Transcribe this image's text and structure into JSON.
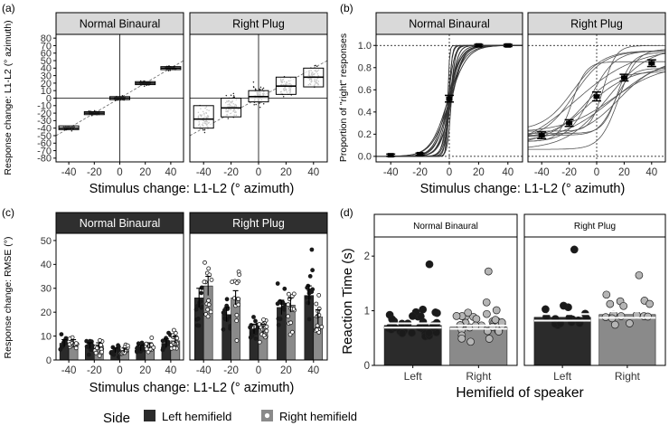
{
  "figure": {
    "legend": {
      "title": "Side",
      "entries": [
        "Left hemifield",
        "Right hemifield"
      ]
    }
  },
  "chart_data": [
    {
      "id": "a",
      "label": "(a)",
      "type": "scatter",
      "facets": [
        "Normal Binaural",
        "Right Plug"
      ],
      "xlabel": "Stimulus change: L1-L2 (° azimuth)",
      "ylabel": "Response change: L1-L2 (° azimuth)",
      "xticks": [
        "-40",
        "-20",
        "0",
        "20",
        "40"
      ],
      "yticks": [
        "-80",
        "-70",
        "-60",
        "-50",
        "-40",
        "-30",
        "-20",
        "-10",
        "0",
        "10",
        "20",
        "30",
        "40",
        "50",
        "60",
        "70",
        "80"
      ],
      "ylim": [
        -85,
        85
      ],
      "x": [
        -40,
        -20,
        0,
        20,
        40
      ],
      "boxes": [
        {
          "name": "Normal Binaural",
          "median": [
            -40,
            -20,
            0,
            20,
            40
          ],
          "q1": [
            -42,
            -22,
            -2,
            18,
            38
          ],
          "q3": [
            -37,
            -18,
            2,
            22,
            42
          ],
          "spread": [
            5,
            5,
            5,
            5,
            5
          ]
        },
        {
          "name": "Right Plug",
          "median": [
            -28,
            -13,
            2,
            16,
            28
          ],
          "q1": [
            -40,
            -25,
            -5,
            5,
            15
          ],
          "q3": [
            -10,
            0,
            10,
            28,
            40
          ],
          "spread": [
            28,
            28,
            26,
            24,
            24
          ]
        }
      ]
    },
    {
      "id": "b",
      "label": "(b)",
      "type": "line",
      "facets": [
        "Normal Binaural",
        "Right Plug"
      ],
      "xlabel": "Stimulus change: L1-L2 (° azimuth)",
      "ylabel": "Proportion of \"right\" responses",
      "xticks": [
        "-40",
        "-20",
        "0",
        "20",
        "40"
      ],
      "yticks": [
        "0.0",
        "0.2",
        "0.4",
        "0.6",
        "0.8",
        "1.0"
      ],
      "ylim": [
        -0.05,
        1.1
      ],
      "x": [
        -40,
        -20,
        0,
        20,
        40
      ],
      "series": [
        {
          "name": "Normal Binaural",
          "mean": [
            0.01,
            0.02,
            0.52,
            1.0,
            1.0
          ],
          "err": [
            0.01,
            0.01,
            0.03,
            0.01,
            0.01
          ]
        },
        {
          "name": "Right Plug",
          "mean": [
            0.19,
            0.3,
            0.54,
            0.71,
            0.84
          ],
          "err": [
            0.03,
            0.03,
            0.04,
            0.03,
            0.03
          ]
        }
      ]
    },
    {
      "id": "c",
      "label": "(c)",
      "type": "bar",
      "facets": [
        "Normal Binaural",
        "Right Plug"
      ],
      "xlabel": "Stimulus change: L1-L2 (° azimuth)",
      "ylabel": "Response change: RMSE (°)",
      "xticks": [
        "-40",
        "-20",
        "0",
        "20",
        "40"
      ],
      "yticks": [
        "0",
        "10",
        "20",
        "30",
        "40",
        "50"
      ],
      "ylim": [
        0,
        53
      ],
      "categories": [
        "-40",
        "-20",
        "0",
        "20",
        "40"
      ],
      "series": [
        {
          "facet": "Normal Binaural",
          "name": "Left hemifield",
          "values": [
            7,
            6,
            4,
            5,
            7
          ],
          "err": [
            1.5,
            1.2,
            1.0,
            1.2,
            1.8
          ]
        },
        {
          "facet": "Normal Binaural",
          "name": "Right hemifield",
          "values": [
            7,
            6,
            4,
            6,
            8
          ],
          "err": [
            1.5,
            1.2,
            1.0,
            1.2,
            2.0
          ]
        },
        {
          "facet": "Right Plug",
          "name": "Left hemifield",
          "values": [
            26,
            19,
            13,
            22,
            27
          ],
          "err": [
            4,
            3,
            2,
            3,
            4
          ]
        },
        {
          "facet": "Right Plug",
          "name": "Right hemifield",
          "values": [
            31,
            26,
            13,
            23,
            18
          ],
          "err": [
            4,
            3,
            2,
            3,
            3
          ]
        }
      ]
    },
    {
      "id": "d",
      "label": "(d)",
      "type": "bar",
      "facets": [
        "Normal Binaural",
        "Right Plug"
      ],
      "xlabel": "Hemifield of speaker",
      "ylabel": "Reaction Time (s)",
      "yticks": [
        "0",
        "1",
        "2"
      ],
      "ylim": [
        0,
        2.35
      ],
      "categories": [
        "Left",
        "Right"
      ],
      "series": [
        {
          "facet": "Normal Binaural",
          "values": [
            0.73,
            0.7
          ],
          "err": [
            0.04,
            0.03
          ]
        },
        {
          "facet": "Right Plug",
          "values": [
            0.88,
            0.93
          ],
          "err": [
            0.06,
            0.06
          ]
        }
      ]
    }
  ]
}
